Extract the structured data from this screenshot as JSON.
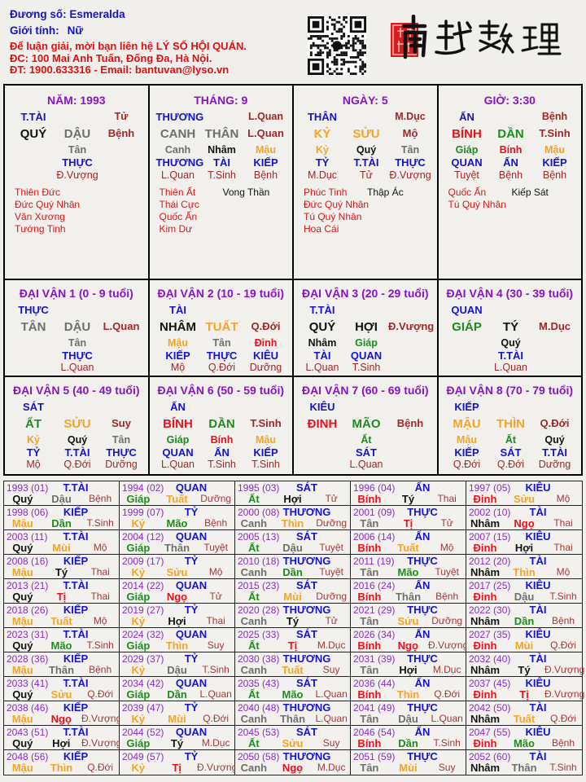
{
  "header": {
    "name_label": "Đương số:",
    "name": "Esmeralda",
    "gender_label": "Giới tính:",
    "gender": "Nữ",
    "contact_line1": "Để luận giải, mời bạn liên hệ LÝ SỐ HỘI QUÁN.",
    "contact_line2": "ĐC: 100 Mai Anh Tuấn, Đống Đa, Hà Nội.",
    "contact_line3": "ĐT: 1900.633316 - Email: bantuvan@lyso.vn",
    "logo_text": "南越數理",
    "qr_icon": "qr-code"
  },
  "colors": {
    "wood": "#1e8c1e",
    "fire": "#ea101c",
    "earth": "#f5a42a",
    "metal": "#6e6e6e",
    "water": "#111111",
    "title": "#8a14c4",
    "label": "#1414d0",
    "stage": "#a02828",
    "star": "#d81818",
    "border": "#000000"
  },
  "element_of": {
    "giáp": "wood",
    "ất": "wood",
    "dần": "wood",
    "mão": "wood",
    "bính": "fire",
    "đinh": "fire",
    "tị": "fire",
    "ngọ": "fire",
    "mậu": "earth",
    "kỷ": "earth",
    "sửu": "earth",
    "thìn": "earth",
    "mùi": "earth",
    "tuất": "earth",
    "canh": "metal",
    "tân": "metal",
    "thân": "metal",
    "dậu": "metal",
    "nhâm": "water",
    "quý": "water",
    "tý": "water",
    "hợi": "water"
  },
  "pillars": [
    {
      "title": "NĂM: 1993",
      "top_label": "T.TÀI",
      "top_right": "Tử",
      "stem": "QUÝ",
      "branch": "DẬU",
      "stage": "Bệnh",
      "hidden": [
        {
          "stem": "Tân",
          "label": "THỰC",
          "stage": "Đ.Vượng"
        }
      ],
      "stars": [
        "Thiên Đức",
        "Đức Quý Nhân",
        "Văn Xương",
        "Tướng Tinh"
      ],
      "stars2": []
    },
    {
      "title": "THÁNG: 9",
      "top_label": "THƯƠNG",
      "top_right": "L.Quan",
      "stem": "CANH",
      "branch": "THÂN",
      "stage": "L.Quan",
      "hidden": [
        {
          "stem": "Canh",
          "label": "THƯƠNG",
          "stage": "L.Quan"
        },
        {
          "stem": "Nhâm",
          "label": "TÀI",
          "stage": "T.Sinh"
        },
        {
          "stem": "Mậu",
          "label": "KIẾP",
          "stage": "Bệnh"
        }
      ],
      "stars": [
        "Thiên Ất",
        "Thái Cực",
        "Quốc Ấn",
        "Kim Dư"
      ],
      "stars2": [
        "Vong Thần"
      ]
    },
    {
      "title": "NGÀY: 5",
      "top_label": "THÂN",
      "top_right": "M.Dục",
      "stem": "KỶ",
      "branch": "SỬU",
      "stage": "Mộ",
      "hidden": [
        {
          "stem": "Kỷ",
          "label": "TỶ",
          "stage": "M.Dục"
        },
        {
          "stem": "Quý",
          "label": "T.TÀI",
          "stage": "Tử"
        },
        {
          "stem": "Tân",
          "label": "THỰC",
          "stage": "Đ.Vượng"
        }
      ],
      "stars": [
        "Phúc Tinh",
        "Đức Quý Nhân",
        "Tú Quý Nhân",
        "Hoa Cái"
      ],
      "stars2": [
        "Thập Ác"
      ]
    },
    {
      "title": "GIỜ: 3:30",
      "top_label": "ẤN",
      "top_right": "Bệnh",
      "stem": "BÍNH",
      "branch": "DẦN",
      "stage": "T.Sinh",
      "hidden": [
        {
          "stem": "Giáp",
          "label": "QUAN",
          "stage": "Tuyệt"
        },
        {
          "stem": "Bính",
          "label": "ẤN",
          "stage": "Bệnh"
        },
        {
          "stem": "Mậu",
          "label": "KIẾP",
          "stage": "Bệnh"
        }
      ],
      "stars": [
        "Quốc Ấn",
        "Tú Quý Nhân"
      ],
      "stars2": [
        "Kiếp Sát"
      ]
    }
  ],
  "dai_van": [
    {
      "title": "ĐẠI VẬN 1 (0 - 9 tuổi)",
      "top_label": "THỰC",
      "stem": "TÂN",
      "branch": "DẬU",
      "stage": "L.Quan",
      "hidden": [
        {
          "stem": "Tân",
          "label": "THỰC",
          "stage": "L.Quan"
        }
      ]
    },
    {
      "title": "ĐẠI VẬN 2 (10 - 19 tuổi)",
      "top_label": "TÀI",
      "stem": "NHÂM",
      "branch": "TUẤT",
      "stage": "Q.Đới",
      "hidden": [
        {
          "stem": "Mậu",
          "label": "KIẾP",
          "stage": "Mộ"
        },
        {
          "stem": "Tân",
          "label": "THỰC",
          "stage": "Q.Đới"
        },
        {
          "stem": "Đinh",
          "label": "KIÊU",
          "stage": "Dưỡng"
        }
      ]
    },
    {
      "title": "ĐẠI VẬN 3 (20 - 29 tuổi)",
      "top_label": "T.TÀI",
      "stem": "QUÝ",
      "branch": "HỢI",
      "stage": "Đ.Vượng",
      "hidden": [
        {
          "stem": "Nhâm",
          "label": "TÀI",
          "stage": "L.Quan"
        },
        {
          "stem": "Giáp",
          "label": "QUAN",
          "stage": "T.Sinh"
        }
      ]
    },
    {
      "title": "ĐẠI VẬN 4 (30 - 39 tuổi)",
      "top_label": "QUAN",
      "stem": "GIÁP",
      "branch": "TÝ",
      "stage": "M.Dục",
      "hidden": [
        {
          "stem": "Quý",
          "label": "T.TÀI",
          "stage": "L.Quan"
        }
      ]
    },
    {
      "title": "ĐẠI VẬN 5 (40 - 49 tuổi)",
      "top_label": "SÁT",
      "stem": "ẤT",
      "branch": "SỬU",
      "stage": "Suy",
      "hidden": [
        {
          "stem": "Kỷ",
          "label": "TỶ",
          "stage": "Mộ"
        },
        {
          "stem": "Quý",
          "label": "T.TÀI",
          "stage": "Q.Đới"
        },
        {
          "stem": "Tân",
          "label": "THỰC",
          "stage": "Dưỡng"
        }
      ]
    },
    {
      "title": "ĐẠI VẬN 6 (50 - 59 tuổi)",
      "top_label": "ẤN",
      "stem": "BÍNH",
      "branch": "DẦN",
      "stage": "T.Sinh",
      "hidden": [
        {
          "stem": "Giáp",
          "label": "QUAN",
          "stage": "L.Quan"
        },
        {
          "stem": "Bính",
          "label": "ẤN",
          "stage": "T.Sinh"
        },
        {
          "stem": "Mậu",
          "label": "KIẾP",
          "stage": "T.Sinh"
        }
      ]
    },
    {
      "title": "ĐẠI VẬN 7 (60 - 69 tuổi)",
      "top_label": "KIÊU",
      "stem": "ĐINH",
      "branch": "MÃO",
      "stage": "Bệnh",
      "hidden": [
        {
          "stem": "Ất",
          "label": "SÁT",
          "stage": "L.Quan"
        }
      ]
    },
    {
      "title": "ĐẠI VẬN 8 (70 - 79 tuổi)",
      "top_label": "KIẾP",
      "stem": "MẬU",
      "branch": "THÌN",
      "stage": "Q.Đới",
      "hidden": [
        {
          "stem": "Mậu",
          "label": "KIẾP",
          "stage": "Q.Đới"
        },
        {
          "stem": "Ất",
          "label": "SÁT",
          "stage": "Q.Đới"
        },
        {
          "stem": "Quý",
          "label": "T.TÀI",
          "stage": "Dưỡng"
        }
      ]
    }
  ],
  "years": [
    [
      "1993 (01)",
      "T.TÀI",
      "Quý",
      "Dậu",
      "Bệnh"
    ],
    [
      "1994 (02)",
      "QUAN",
      "Giáp",
      "Tuất",
      "Dưỡng"
    ],
    [
      "1995 (03)",
      "SÁT",
      "Ất",
      "Hợi",
      "Tử"
    ],
    [
      "1996 (04)",
      "ẤN",
      "Bính",
      "Tý",
      "Thai"
    ],
    [
      "1997 (05)",
      "KIÊU",
      "Đinh",
      "Sửu",
      "Mộ"
    ],
    [
      "1998 (06)",
      "KIẾP",
      "Mậu",
      "Dần",
      "T.Sinh"
    ],
    [
      "1999 (07)",
      "TỶ",
      "Kỷ",
      "Mão",
      "Bệnh"
    ],
    [
      "2000 (08)",
      "THƯƠNG",
      "Canh",
      "Thìn",
      "Dưỡng"
    ],
    [
      "2001 (09)",
      "THỰC",
      "Tân",
      "Tị",
      "Tử"
    ],
    [
      "2002 (10)",
      "TÀI",
      "Nhâm",
      "Ngọ",
      "Thai"
    ],
    [
      "2003 (11)",
      "T.TÀI",
      "Quý",
      "Mùi",
      "Mộ"
    ],
    [
      "2004 (12)",
      "QUAN",
      "Giáp",
      "Thân",
      "Tuyệt"
    ],
    [
      "2005 (13)",
      "SÁT",
      "Ất",
      "Dậu",
      "Tuyệt"
    ],
    [
      "2006 (14)",
      "ẤN",
      "Bính",
      "Tuất",
      "Mộ"
    ],
    [
      "2007 (15)",
      "KIÊU",
      "Đinh",
      "Hợi",
      "Thai"
    ],
    [
      "2008 (16)",
      "KIẾP",
      "Mậu",
      "Tý",
      "Thai"
    ],
    [
      "2009 (17)",
      "TỶ",
      "Kỷ",
      "Sửu",
      "Mộ"
    ],
    [
      "2010 (18)",
      "THƯƠNG",
      "Canh",
      "Dần",
      "Tuyệt"
    ],
    [
      "2011 (19)",
      "THỰC",
      "Tân",
      "Mão",
      "Tuyệt"
    ],
    [
      "2012 (20)",
      "TÀI",
      "Nhâm",
      "Thìn",
      "Mộ"
    ],
    [
      "2013 (21)",
      "T.TÀI",
      "Quý",
      "Tị",
      "Thai"
    ],
    [
      "2014 (22)",
      "QUAN",
      "Giáp",
      "Ngọ",
      "Tử"
    ],
    [
      "2015 (23)",
      "SÁT",
      "Ất",
      "Mùi",
      "Dưỡng"
    ],
    [
      "2016 (24)",
      "ẤN",
      "Bính",
      "Thân",
      "Bệnh"
    ],
    [
      "2017 (25)",
      "KIÊU",
      "Đinh",
      "Dậu",
      "T.Sinh"
    ],
    [
      "2018 (26)",
      "KIẾP",
      "Mậu",
      "Tuất",
      "Mộ"
    ],
    [
      "2019 (27)",
      "TỶ",
      "Kỷ",
      "Hợi",
      "Thai"
    ],
    [
      "2020 (28)",
      "THƯƠNG",
      "Canh",
      "Tý",
      "Tử"
    ],
    [
      "2021 (29)",
      "THỰC",
      "Tân",
      "Sửu",
      "Dưỡng"
    ],
    [
      "2022 (30)",
      "TÀI",
      "Nhâm",
      "Dần",
      "Bệnh"
    ],
    [
      "2023 (31)",
      "T.TÀI",
      "Quý",
      "Mão",
      "T.Sinh"
    ],
    [
      "2024 (32)",
      "QUAN",
      "Giáp",
      "Thìn",
      "Suy"
    ],
    [
      "2025 (33)",
      "SÁT",
      "Ất",
      "Tị",
      "M.Dục"
    ],
    [
      "2026 (34)",
      "ẤN",
      "Bính",
      "Ngọ",
      "Đ.Vượng"
    ],
    [
      "2027 (35)",
      "KIÊU",
      "Đinh",
      "Mùi",
      "Q.Đới"
    ],
    [
      "2028 (36)",
      "KIẾP",
      "Mậu",
      "Thân",
      "Bệnh"
    ],
    [
      "2029 (37)",
      "TỶ",
      "Kỷ",
      "Dậu",
      "T.Sinh"
    ],
    [
      "2030 (38)",
      "THƯƠNG",
      "Canh",
      "Tuất",
      "Suy"
    ],
    [
      "2031 (39)",
      "THỰC",
      "Tân",
      "Hợi",
      "M.Dục"
    ],
    [
      "2032 (40)",
      "TÀI",
      "Nhâm",
      "Tý",
      "Đ.Vượng"
    ],
    [
      "2033 (41)",
      "T.TÀI",
      "Quý",
      "Sửu",
      "Q.Đới"
    ],
    [
      "2034 (42)",
      "QUAN",
      "Giáp",
      "Dần",
      "L.Quan"
    ],
    [
      "2035 (43)",
      "SÁT",
      "Ất",
      "Mão",
      "L.Quan"
    ],
    [
      "2036 (44)",
      "ẤN",
      "Bính",
      "Thìn",
      "Q.Đới"
    ],
    [
      "2037 (45)",
      "KIÊU",
      "Đinh",
      "Tị",
      "Đ.Vượng"
    ],
    [
      "2038 (46)",
      "KIẾP",
      "Mậu",
      "Ngọ",
      "Đ.Vượng"
    ],
    [
      "2039 (47)",
      "TỶ",
      "Kỷ",
      "Mùi",
      "Q.Đới"
    ],
    [
      "2040 (48)",
      "THƯƠNG",
      "Canh",
      "Thân",
      "L.Quan"
    ],
    [
      "2041 (49)",
      "THỰC",
      "Tân",
      "Dậu",
      "L.Quan"
    ],
    [
      "2042 (50)",
      "TÀI",
      "Nhâm",
      "Tuất",
      "Q.Đới"
    ],
    [
      "2043 (51)",
      "T.TÀI",
      "Quý",
      "Hợi",
      "Đ.Vượng"
    ],
    [
      "2044 (52)",
      "QUAN",
      "Giáp",
      "Tý",
      "M.Dục"
    ],
    [
      "2045 (53)",
      "SÁT",
      "Ất",
      "Sửu",
      "Suy"
    ],
    [
      "2046 (54)",
      "ẤN",
      "Bính",
      "Dần",
      "T.Sinh"
    ],
    [
      "2047 (55)",
      "KIÊU",
      "Đinh",
      "Mão",
      "Bệnh"
    ],
    [
      "2048 (56)",
      "KIẾP",
      "Mậu",
      "Thìn",
      "Q.Đới"
    ],
    [
      "2049 (57)",
      "TỶ",
      "Kỷ",
      "Tị",
      "Đ.Vượng"
    ],
    [
      "2050 (58)",
      "THƯƠNG",
      "Canh",
      "Ngọ",
      "M.Dục"
    ],
    [
      "2051 (59)",
      "THỰC",
      "Tân",
      "Mùi",
      "Suy"
    ],
    [
      "2052 (60)",
      "TÀI",
      "Nhâm",
      "Thân",
      "T.Sinh"
    ]
  ]
}
